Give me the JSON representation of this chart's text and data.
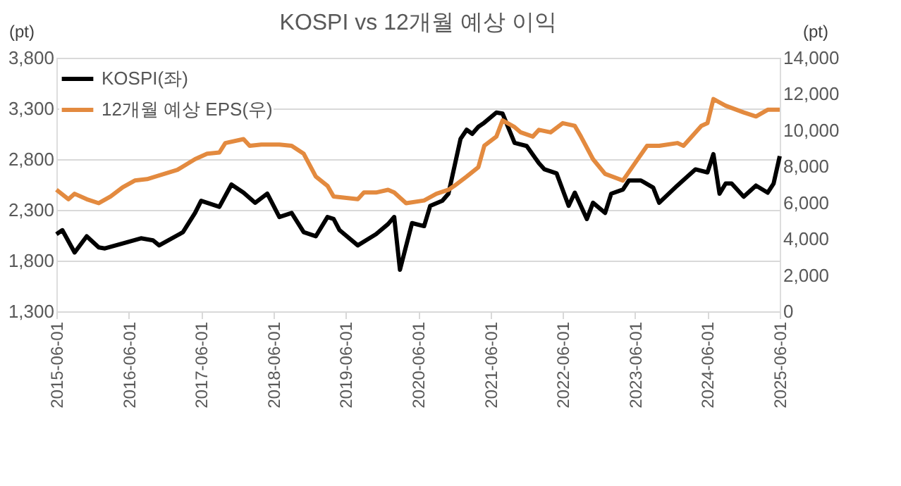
{
  "chart_data": {
    "type": "line",
    "title": "KOSPI vs 12개월 예상 이익",
    "ylabel": "(pt)",
    "y2label": "(pt)",
    "xlim": [
      "2015-06-01",
      "2025-06-01"
    ],
    "xticks": [
      "2015-06-01",
      "2016-06-01",
      "2017-06-01",
      "2018-06-01",
      "2019-06-01",
      "2020-06-01",
      "2021-06-01",
      "2022-06-01",
      "2023-06-01",
      "2024-06-01",
      "2025-06-01"
    ],
    "ylim": [
      1300,
      3800
    ],
    "yticks": [
      {
        "value": 1300,
        "label": "1,300"
      },
      {
        "value": 1800,
        "label": "1,800"
      },
      {
        "value": 2300,
        "label": "2,300"
      },
      {
        "value": 2800,
        "label": "2,800"
      },
      {
        "value": 3300,
        "label": "3,300"
      },
      {
        "value": 3800,
        "label": "3,800"
      }
    ],
    "y2lim": [
      0,
      14000
    ],
    "y2ticks": [
      {
        "value": 0,
        "label": "0"
      },
      {
        "value": 2000,
        "label": "2,000"
      },
      {
        "value": 4000,
        "label": "4,000"
      },
      {
        "value": 6000,
        "label": "6,000"
      },
      {
        "value": 8000,
        "label": "8,000"
      },
      {
        "value": 10000,
        "label": "10,000"
      },
      {
        "value": 12000,
        "label": "12,000"
      },
      {
        "value": 14000,
        "label": "14,000"
      }
    ],
    "grid": "y",
    "legend": "top left",
    "marker": "none",
    "line_style": "solid",
    "series": [
      {
        "name": "KOSPI(좌)",
        "color": "#000000",
        "x": [
          "2015-06",
          "2015-07",
          "2015-09",
          "2015-11",
          "2016-01",
          "2016-02",
          "2016-05",
          "2016-08",
          "2016-10",
          "2016-11",
          "2017-03",
          "2017-05",
          "2017-06",
          "2017-09",
          "2017-11",
          "2018-01",
          "2018-03",
          "2018-05",
          "2018-07",
          "2018-09",
          "2018-11",
          "2019-01",
          "2019-03",
          "2019-04",
          "2019-05",
          "2019-08",
          "2019-11",
          "2020-01",
          "2020-02",
          "2020-03",
          "2020-05",
          "2020-07",
          "2020-08",
          "2020-10",
          "2020-11",
          "2021-01",
          "2021-02",
          "2021-03",
          "2021-04",
          "2021-05",
          "2021-07",
          "2021-08",
          "2021-10",
          "2021-12",
          "2022-02",
          "2022-03",
          "2022-05",
          "2022-07",
          "2022-08",
          "2022-10",
          "2022-11",
          "2023-01",
          "2023-02",
          "2023-04",
          "2023-05",
          "2023-07",
          "2023-09",
          "2023-10",
          "2024-01",
          "2024-04",
          "2024-06",
          "2024-07",
          "2024-08",
          "2024-09",
          "2024-10",
          "2024-12",
          "2025-02",
          "2025-04",
          "2025-05",
          "2025-06"
        ],
        "values": [
          2060,
          2100,
          1880,
          2040,
          1930,
          1920,
          1970,
          2020,
          2000,
          1950,
          2080,
          2270,
          2390,
          2330,
          2550,
          2470,
          2370,
          2460,
          2230,
          2270,
          2080,
          2040,
          2230,
          2210,
          2100,
          1950,
          2060,
          2160,
          2230,
          1710,
          2170,
          2140,
          2340,
          2390,
          2460,
          3000,
          3090,
          3050,
          3120,
          3160,
          3260,
          3250,
          2960,
          2930,
          2760,
          2700,
          2660,
          2340,
          2470,
          2210,
          2370,
          2270,
          2460,
          2500,
          2590,
          2590,
          2520,
          2370,
          2540,
          2700,
          2670,
          2850,
          2460,
          2560,
          2560,
          2430,
          2540,
          2470,
          2560,
          2830
        ]
      },
      {
        "name": "12개월 예상 EPS(우)",
        "color": "#e38a3f",
        "axis": "y2",
        "x": [
          "2015-06",
          "2015-08",
          "2015-09",
          "2015-11",
          "2016-01",
          "2016-03",
          "2016-05",
          "2016-07",
          "2016-09",
          "2017-02",
          "2017-05",
          "2017-07",
          "2017-09",
          "2017-10",
          "2018-01",
          "2018-02",
          "2018-04",
          "2018-07",
          "2018-09",
          "2018-11",
          "2019-01",
          "2019-03",
          "2019-04",
          "2019-08",
          "2019-09",
          "2019-11",
          "2020-01",
          "2020-02",
          "2020-04",
          "2020-07",
          "2020-09",
          "2020-11",
          "2020-12",
          "2021-02",
          "2021-04",
          "2021-05",
          "2021-07",
          "2021-08",
          "2021-10",
          "2021-11",
          "2022-01",
          "2022-02",
          "2022-04",
          "2022-06",
          "2022-08",
          "2022-09",
          "2022-11",
          "2023-01",
          "2023-04",
          "2023-06",
          "2023-08",
          "2023-10",
          "2024-01",
          "2024-02",
          "2024-05",
          "2024-06",
          "2024-07",
          "2024-09",
          "2024-12",
          "2025-02",
          "2025-04",
          "2025-06"
        ],
        "values": [
          6710,
          6190,
          6490,
          6190,
          5970,
          6340,
          6850,
          7220,
          7300,
          7810,
          8400,
          8700,
          8770,
          9290,
          9510,
          9140,
          9210,
          9210,
          9140,
          8700,
          7440,
          6930,
          6340,
          6190,
          6560,
          6560,
          6710,
          6560,
          5970,
          6120,
          6490,
          6710,
          6930,
          7440,
          7960,
          9140,
          9650,
          10540,
          10170,
          9880,
          9650,
          10020,
          9880,
          10390,
          10240,
          9650,
          8400,
          7590,
          7220,
          8180,
          9140,
          9140,
          9290,
          9140,
          10240,
          10390,
          11720,
          11350,
          10980,
          10760,
          11130,
          11130
        ]
      }
    ]
  }
}
